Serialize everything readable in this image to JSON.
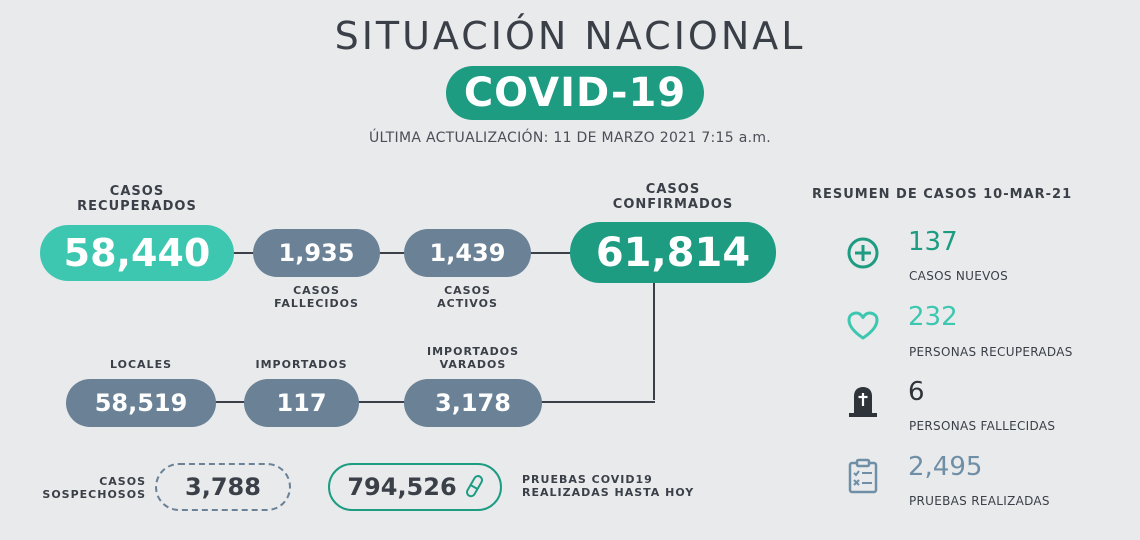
{
  "header": {
    "title": "SITUACIÓN NACIONAL",
    "badge": "COVID-19",
    "updated": "ÚLTIMA ACTUALIZACIÓN: 11 DE MARZO 2021 7:15 a.m."
  },
  "recovered": {
    "label1": "CASOS",
    "label2": "RECUPERADOS",
    "value": "58,440"
  },
  "deaths": {
    "label1": "CASOS",
    "label2": "FALLECIDOS",
    "value": "1,935"
  },
  "active": {
    "label1": "CASOS",
    "label2": "ACTIVOS",
    "value": "1,439"
  },
  "confirmed": {
    "label1": "CASOS",
    "label2": "CONFIRMADOS",
    "value": "61,814"
  },
  "local": {
    "label": "LOCALES",
    "value": "58,519"
  },
  "imported": {
    "label": "IMPORTADOS",
    "value": "117"
  },
  "stranded": {
    "label1": "IMPORTADOS",
    "label2": "VARADOS",
    "value": "3,178"
  },
  "suspected": {
    "label1": "CASOS",
    "label2": "SOSPECHOSOS",
    "value": "3,788"
  },
  "tests": {
    "value": "794,526",
    "label1": "PRUEBAS COVID19",
    "label2": "REALIZADAS HASTA HOY"
  },
  "summary": {
    "title": "RESUMEN DE CASOS 10-MAR-21",
    "items": [
      {
        "icon": "plus-circle-icon",
        "value": "137",
        "label": "CASOS NUEVOS"
      },
      {
        "icon": "heart-icon",
        "value": "232",
        "label": "PERSONAS RECUPERADAS"
      },
      {
        "icon": "tombstone-icon",
        "value": "6",
        "label": "PERSONAS FALLECIDAS"
      },
      {
        "icon": "clipboard-checklist-icon",
        "value": "2,495",
        "label": "PRUEBAS REALIZADAS"
      }
    ]
  },
  "colors": {
    "teal": "#1d9c82",
    "light_teal": "#3ec7b0",
    "slate": "#6a8196",
    "background": "#e9eaec"
  }
}
